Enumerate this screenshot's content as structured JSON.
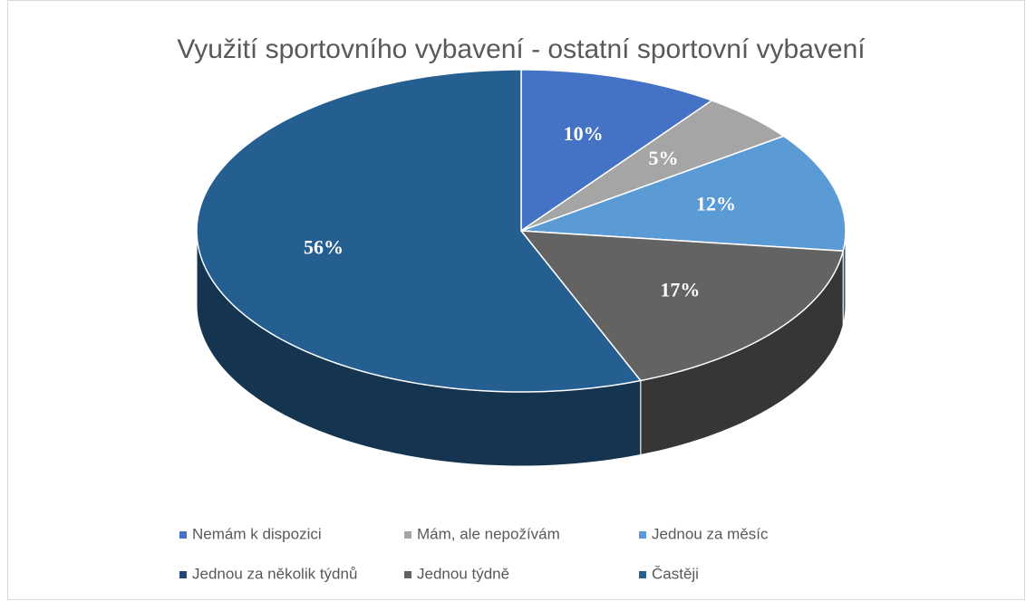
{
  "chart_data": {
    "type": "pie3d",
    "title": "Využití sportovního vybavení - ostatní sportovní vybavení",
    "categories": [
      "Nemám k dispozici",
      "Mám, ale nepožívám",
      "Jednou za měsíc",
      "Jednou za několik týdnů",
      "Jednou týdně",
      "Častěji"
    ],
    "values": [
      10,
      5,
      12,
      0,
      17,
      56
    ],
    "value_labels": [
      "10%",
      "5%",
      "12%",
      null,
      "17%",
      "56%"
    ],
    "colors": [
      "#4472c4",
      "#a5a5a5",
      "#5b9bd5",
      "#264478",
      "#636363",
      "#255e91"
    ],
    "legend": "bottom"
  }
}
